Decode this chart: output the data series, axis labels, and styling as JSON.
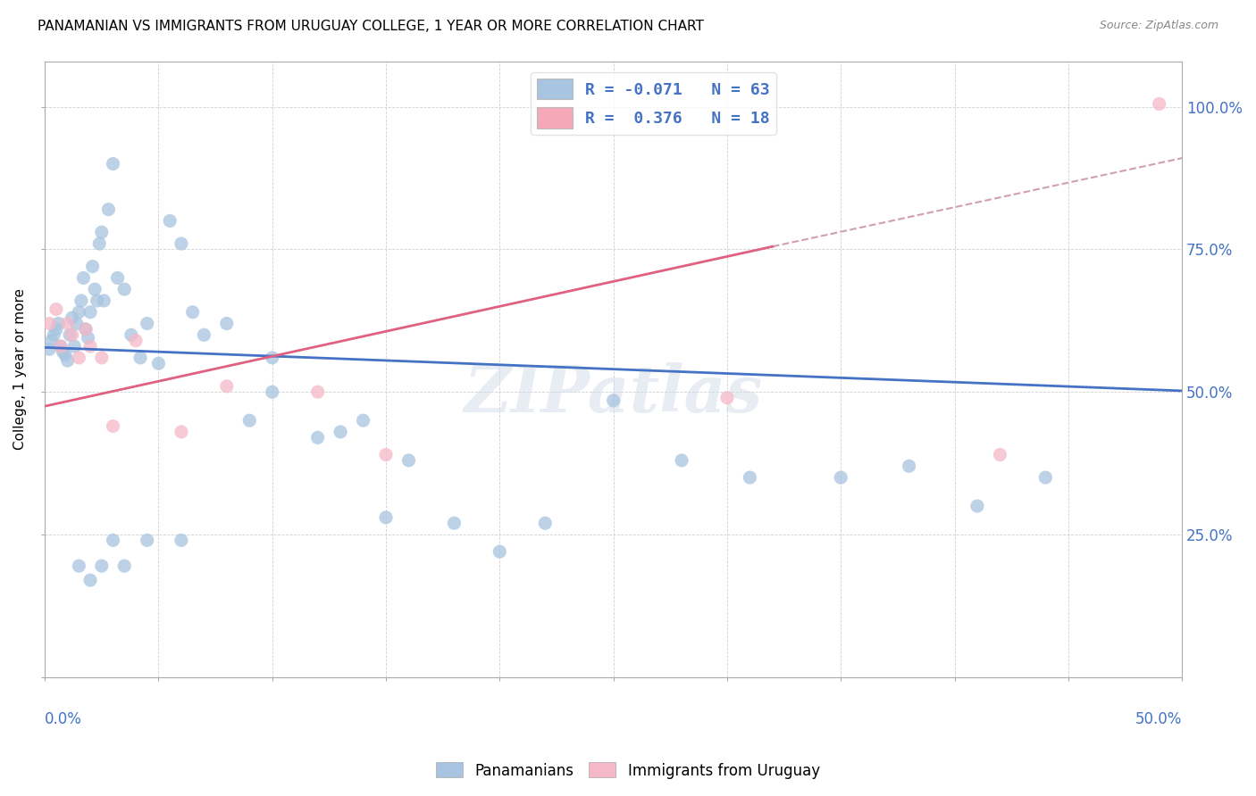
{
  "title": "PANAMANIAN VS IMMIGRANTS FROM URUGUAY COLLEGE, 1 YEAR OR MORE CORRELATION CHART",
  "source": "Source: ZipAtlas.com",
  "ylabel": "College, 1 year or more",
  "xlim": [
    0.0,
    0.5
  ],
  "ylim": [
    0.0,
    1.08
  ],
  "legend_color1": "#a8c4e0",
  "legend_color2": "#f4a8b8",
  "scatter_blue_color": "#a8c4e0",
  "scatter_pink_color": "#f4b8c8",
  "line_blue_color": "#4472c4",
  "line_pink_color": "#e06080",
  "line_pink_dash_color": "#d0a0b0",
  "watermark": "ZIPatlas",
  "blue_points_x": [
    0.002,
    0.003,
    0.004,
    0.005,
    0.006,
    0.007,
    0.008,
    0.009,
    0.01,
    0.011,
    0.012,
    0.013,
    0.014,
    0.015,
    0.016,
    0.017,
    0.018,
    0.019,
    0.02,
    0.021,
    0.022,
    0.023,
    0.024,
    0.025,
    0.026,
    0.028,
    0.03,
    0.032,
    0.035,
    0.038,
    0.042,
    0.045,
    0.05,
    0.055,
    0.06,
    0.065,
    0.07,
    0.08,
    0.09,
    0.1,
    0.12,
    0.14,
    0.16,
    0.18,
    0.2,
    0.22,
    0.25,
    0.28,
    0.31,
    0.35,
    0.38,
    0.41,
    0.44,
    0.1,
    0.13,
    0.15,
    0.045,
    0.06,
    0.03,
    0.02,
    0.015,
    0.025,
    0.035
  ],
  "blue_points_y": [
    0.575,
    0.59,
    0.6,
    0.61,
    0.62,
    0.58,
    0.57,
    0.565,
    0.555,
    0.6,
    0.63,
    0.58,
    0.62,
    0.64,
    0.66,
    0.7,
    0.61,
    0.595,
    0.64,
    0.72,
    0.68,
    0.66,
    0.76,
    0.78,
    0.66,
    0.82,
    0.9,
    0.7,
    0.68,
    0.6,
    0.56,
    0.62,
    0.55,
    0.8,
    0.76,
    0.64,
    0.6,
    0.62,
    0.45,
    0.56,
    0.42,
    0.45,
    0.38,
    0.27,
    0.22,
    0.27,
    0.485,
    0.38,
    0.35,
    0.35,
    0.37,
    0.3,
    0.35,
    0.5,
    0.43,
    0.28,
    0.24,
    0.24,
    0.24,
    0.17,
    0.195,
    0.195,
    0.195
  ],
  "pink_points_x": [
    0.002,
    0.005,
    0.007,
    0.01,
    0.012,
    0.015,
    0.018,
    0.02,
    0.025,
    0.03,
    0.04,
    0.06,
    0.08,
    0.12,
    0.15,
    0.3,
    0.42,
    0.49
  ],
  "pink_points_y": [
    0.62,
    0.645,
    0.58,
    0.62,
    0.6,
    0.56,
    0.61,
    0.58,
    0.56,
    0.44,
    0.59,
    0.43,
    0.51,
    0.5,
    0.39,
    0.49,
    0.39,
    1.005
  ],
  "blue_line_x": [
    0.0,
    0.5
  ],
  "blue_line_y": [
    0.578,
    0.502
  ],
  "pink_line_x": [
    0.0,
    0.32
  ],
  "pink_line_y": [
    0.475,
    0.755
  ],
  "pink_dash_line_x": [
    0.32,
    0.5
  ],
  "pink_dash_line_y": [
    0.755,
    0.91
  ]
}
